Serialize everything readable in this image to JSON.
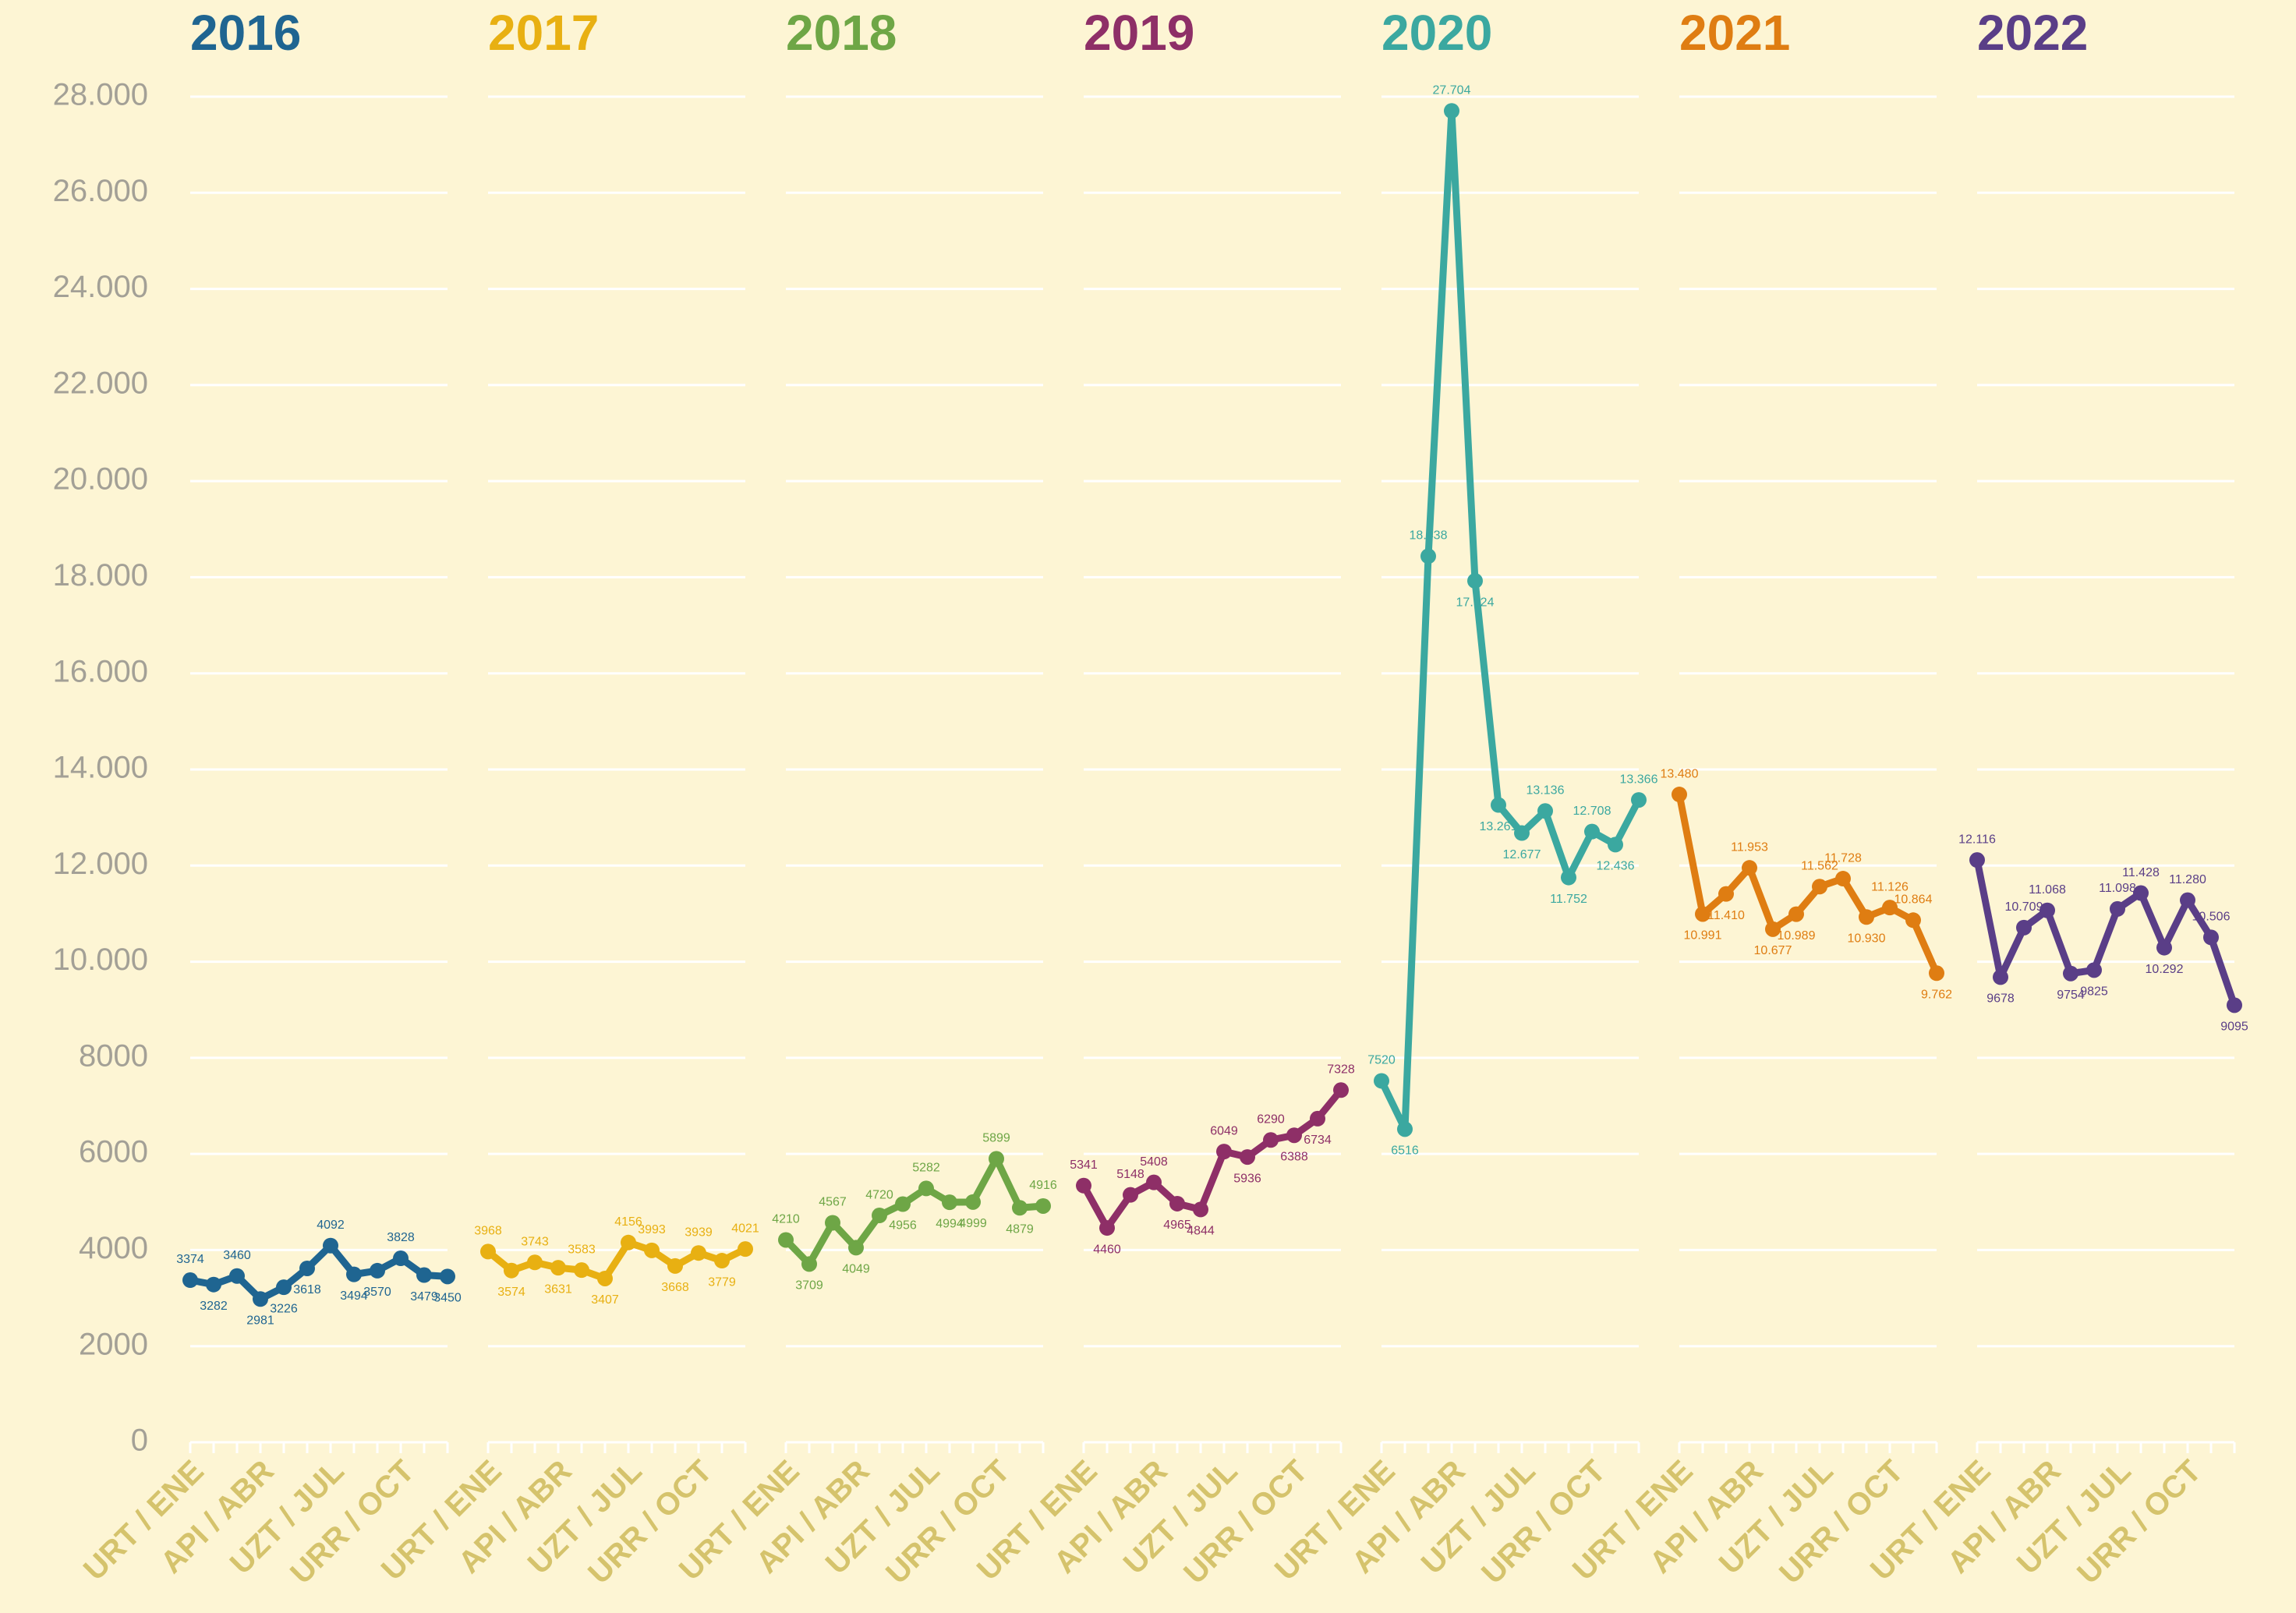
{
  "chart_data": {
    "type": "line",
    "categories": [
      "URT / ENE",
      null,
      null,
      "API / ABR",
      null,
      null,
      "UZT / JUL",
      null,
      null,
      "URR / OCT",
      null,
      null
    ],
    "ylim": [
      0,
      28000
    ],
    "yticks": [
      0,
      2000,
      4000,
      6000,
      8000,
      {
        "value": 10000,
        "label": "10.000"
      },
      {
        "value": 12000,
        "label": "12.000"
      },
      {
        "value": 14000,
        "label": "14.000"
      },
      {
        "value": 16000,
        "label": "16.000"
      },
      {
        "value": 18000,
        "label": "18.000"
      },
      {
        "value": 20000,
        "label": "20.000"
      },
      {
        "value": 22000,
        "label": "22.000"
      },
      {
        "value": 24000,
        "label": "24.000"
      },
      {
        "value": 26000,
        "label": "26.000"
      },
      {
        "value": 28000,
        "label": "28.000"
      }
    ],
    "grid": true,
    "series": [
      {
        "name": "2016",
        "color": "#1f6591",
        "values": [
          3374,
          3282,
          3460,
          2981,
          3226,
          3618,
          4092,
          3494,
          3570,
          3828,
          3479,
          3450
        ]
      },
      {
        "name": "2017",
        "color": "#e8b012",
        "values": [
          3968,
          3574,
          3743,
          3631,
          3583,
          3407,
          4156,
          3993,
          3668,
          3939,
          3779,
          4021
        ]
      },
      {
        "name": "2018",
        "color": "#6ea646",
        "values": [
          4210,
          3709,
          4567,
          4049,
          4720,
          4956,
          5282,
          4994,
          4999,
          5899,
          4879,
          4916
        ]
      },
      {
        "name": "2019",
        "color": "#8e2f67",
        "values": [
          5341,
          4460,
          5148,
          5408,
          4965,
          4844,
          6049,
          5936,
          6290,
          6388,
          6734,
          7328
        ]
      },
      {
        "name": "2020",
        "color": "#3ba8a0",
        "values": [
          7520,
          6516,
          18438,
          27704,
          17924,
          13261,
          12677,
          13136,
          11752,
          12708,
          12436,
          13366
        ],
        "value_labels": [
          "7520",
          "6516",
          "18.438",
          "27.704",
          "17.924",
          "13.261",
          "12.677",
          "13.136",
          "11.752",
          "12.708",
          "12.436",
          "13.366"
        ]
      },
      {
        "name": "2021",
        "color": "#df7d12",
        "values": [
          13480,
          10991,
          11410,
          11953,
          10677,
          10989,
          11562,
          11728,
          10930,
          11126,
          10864,
          9762
        ],
        "value_labels": [
          "13.480",
          "10.991",
          "11.410",
          "11.953",
          "10.677",
          "10.989",
          "11.562",
          "11.728",
          "10.930",
          "11.126",
          "10.864",
          "9.762"
        ]
      },
      {
        "name": "2022",
        "color": "#5a3e87",
        "values": [
          12116,
          9678,
          10709,
          11068,
          9754,
          9825,
          11098,
          11428,
          10292,
          11280,
          10506,
          9095
        ],
        "value_labels": [
          "12.116",
          "9678",
          "10.709",
          "11.068",
          "9754",
          "9825",
          "11.098",
          "11.428",
          "10.292",
          "11.280",
          "10.506",
          "9095"
        ]
      }
    ]
  }
}
